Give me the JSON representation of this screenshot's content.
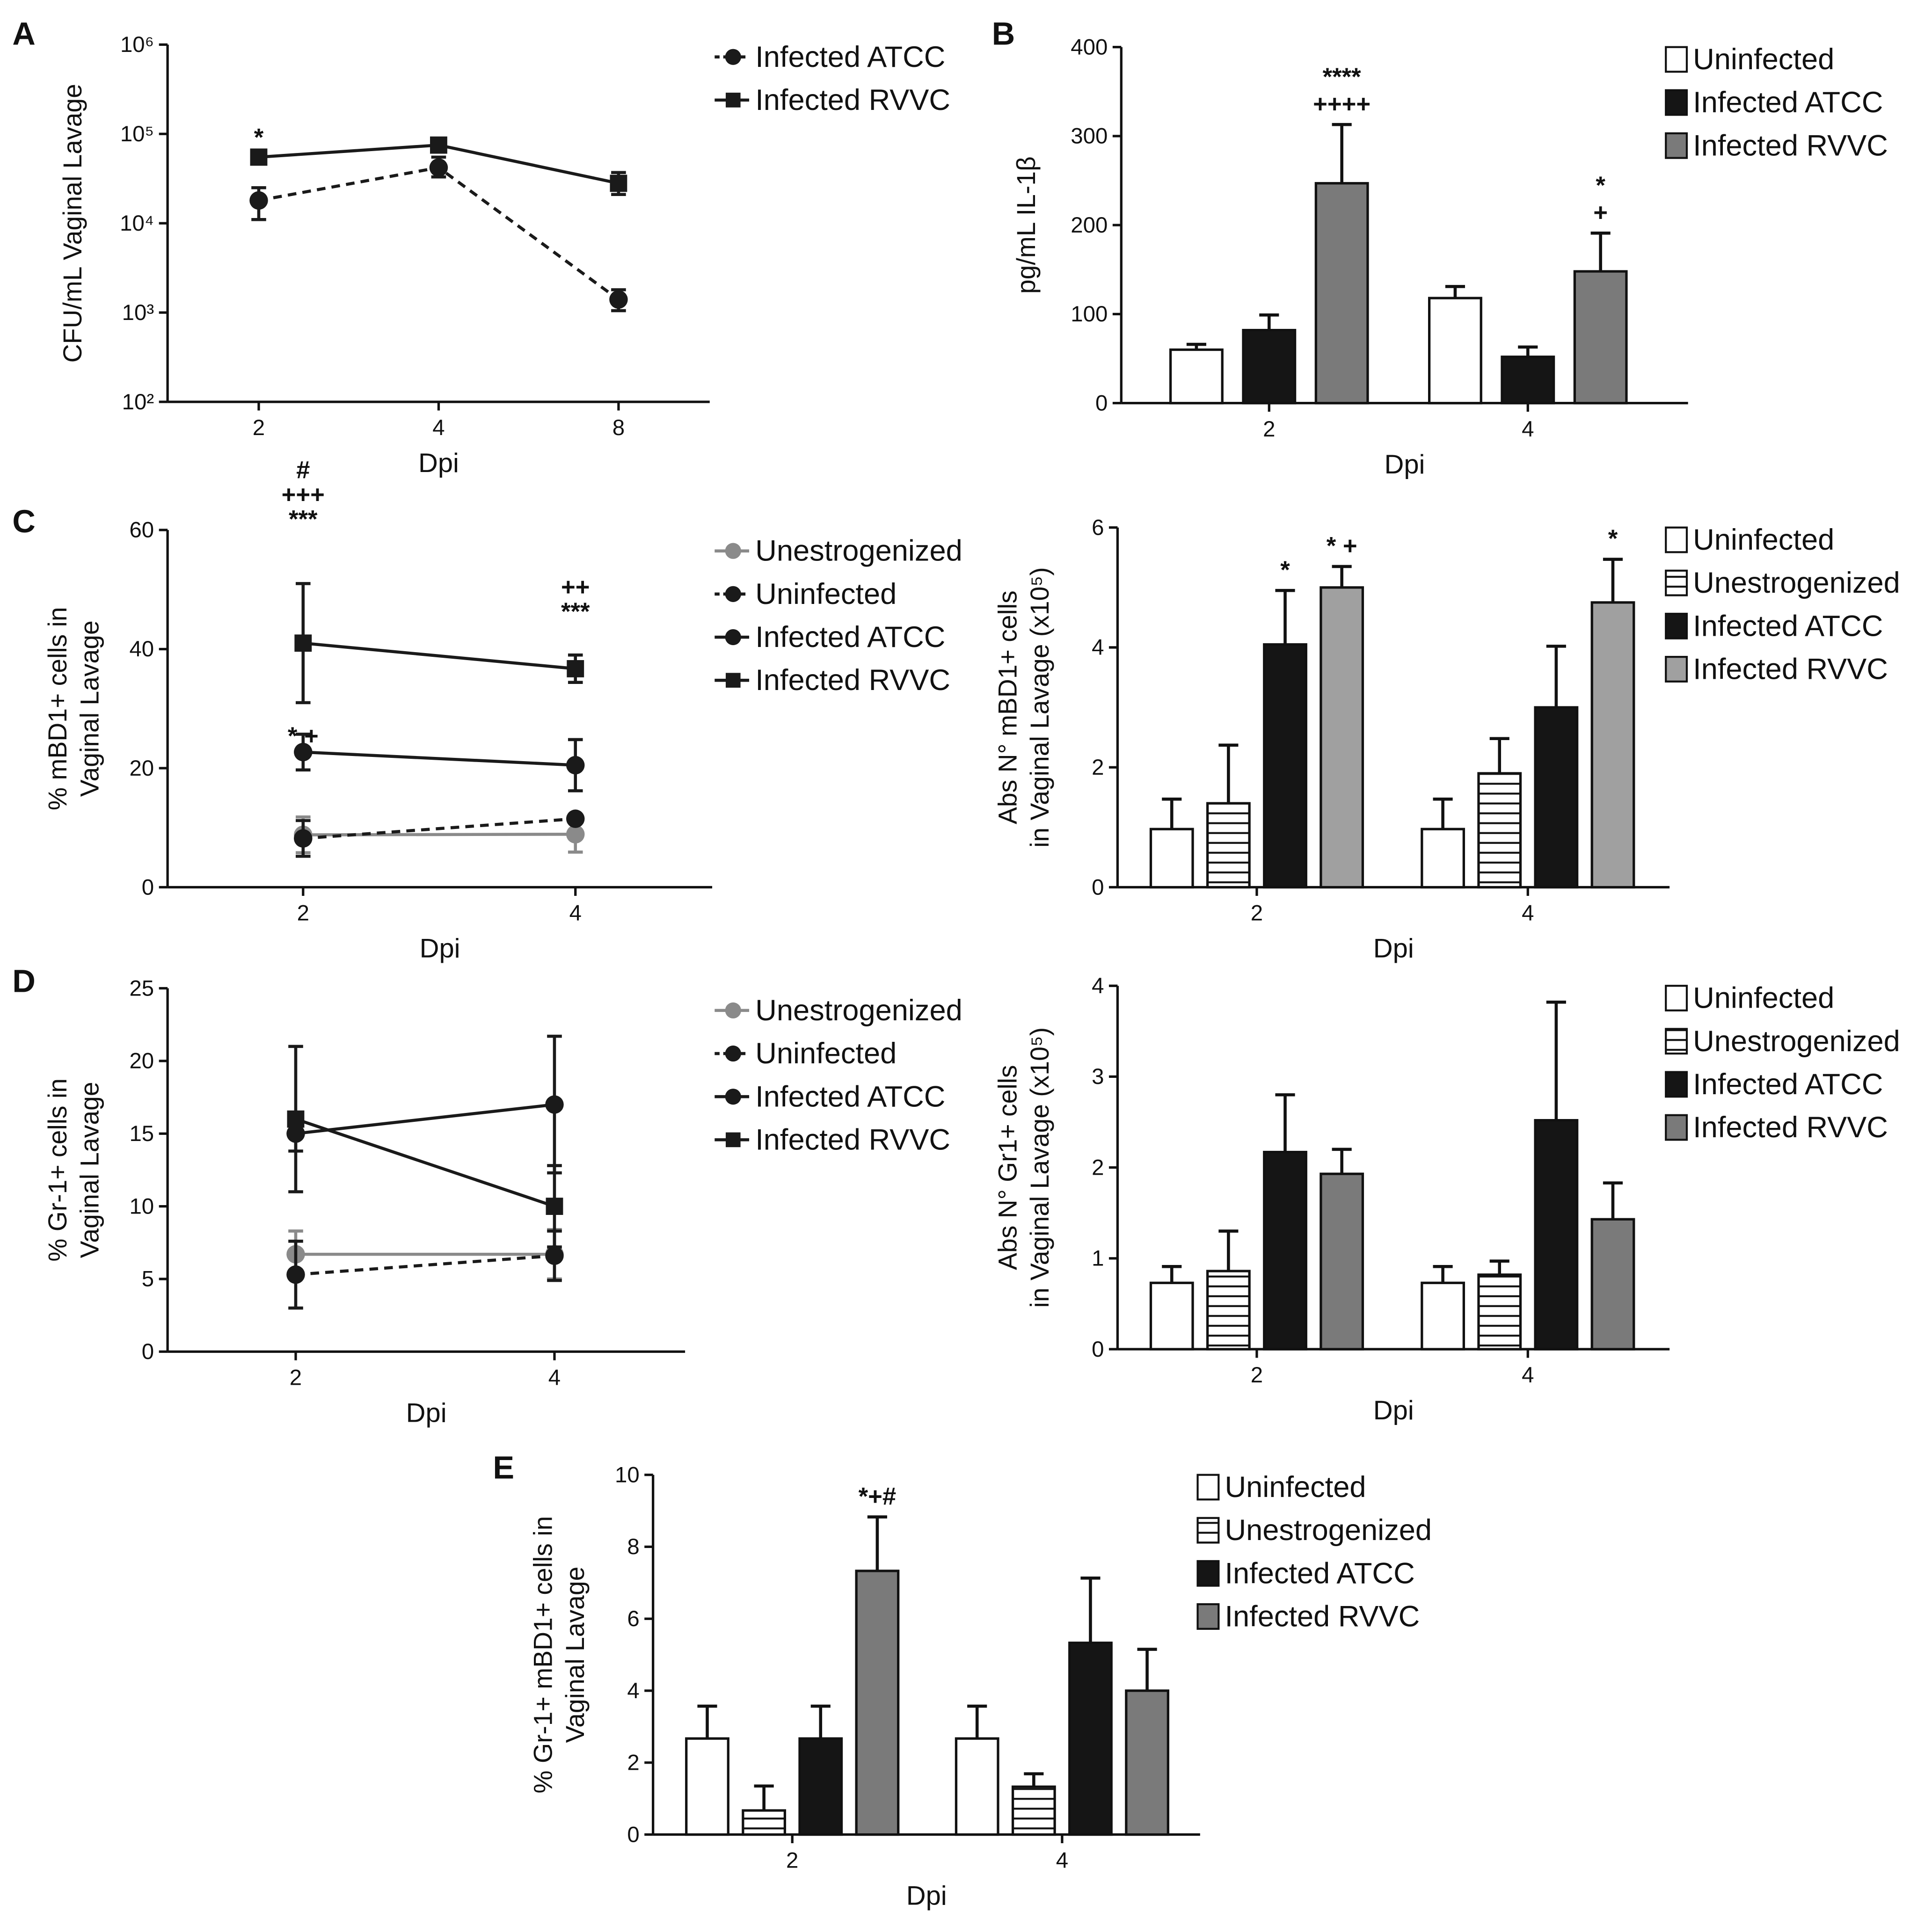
{
  "chart_data": [
    {
      "panel": "A",
      "type": "line",
      "y_scale": "log",
      "ylabel": "CFU/mL Vaginal Lavage",
      "xlabel": "Dpi",
      "x_ticks": [
        "2",
        "4",
        "8"
      ],
      "y_ticks": [
        "10²",
        "10³",
        "10⁴",
        "10⁵",
        "10⁶"
      ],
      "ylim": [
        100,
        1000000
      ],
      "series": [
        {
          "name": "Infected ATCC",
          "marker": "circle",
          "dashed": true,
          "color": "#1a1a1a",
          "values": [
            18000,
            42000,
            1400
          ],
          "errors_up": [
            25000,
            55000,
            1800
          ],
          "errors_down": [
            11000,
            33000,
            1050
          ]
        },
        {
          "name": "Infected RVVC",
          "marker": "square",
          "dashed": false,
          "color": "#1a1a1a",
          "values": [
            55000,
            75000,
            28000
          ],
          "errors_up": [
            62000,
            85000,
            37000
          ],
          "errors_down": [
            48000,
            66000,
            21000
          ]
        }
      ],
      "annotations": [
        {
          "x_index": 0,
          "lines": [
            "*"
          ]
        }
      ]
    },
    {
      "panel": "B",
      "type": "bar",
      "ylabel": "pg/mL IL-1β",
      "xlabel": "Dpi",
      "categories": [
        "2",
        "4"
      ],
      "ylim": [
        0,
        400
      ],
      "y_ticks": [
        "0",
        "100",
        "200",
        "300",
        "400"
      ],
      "series": [
        {
          "name": "Uninfected",
          "fill": "#ffffff",
          "pattern": "none",
          "values": [
            60,
            118
          ],
          "errors": [
            6,
            13
          ]
        },
        {
          "name": "Infected ATCC",
          "fill": "#151515",
          "pattern": "none",
          "values": [
            82,
            52
          ],
          "errors": [
            17,
            11
          ]
        },
        {
          "name": "Infected RVVC",
          "fill": "#7a7a7a",
          "pattern": "none",
          "values": [
            247,
            148
          ],
          "errors": [
            66,
            43
          ]
        }
      ],
      "annotations": [
        {
          "category_index": 0,
          "series_index": 2,
          "lines": [
            "****",
            "++++"
          ]
        },
        {
          "category_index": 1,
          "series_index": 2,
          "lines": [
            "*",
            "+"
          ]
        }
      ]
    },
    {
      "panel": "C",
      "type": "line",
      "ylabel_lines": [
        "% mBD1+ cells in",
        "Vaginal Lavage"
      ],
      "xlabel": "Dpi",
      "x_ticks": [
        "2",
        "4"
      ],
      "ylim": [
        0,
        60
      ],
      "y_ticks": [
        "0",
        "20",
        "40",
        "60"
      ],
      "series": [
        {
          "name": "Unestrogenized",
          "marker": "circle",
          "dashed": false,
          "color": "#8a8a8a",
          "values": [
            8.8,
            8.9
          ],
          "errors": [
            3,
            3
          ]
        },
        {
          "name": "Uninfected",
          "marker": "circle",
          "dashed": true,
          "color": "#1a1a1a",
          "values": [
            8.2,
            11.5
          ],
          "errors": [
            3,
            0.5
          ]
        },
        {
          "name": "Infected ATCC",
          "marker": "circle",
          "dashed": false,
          "color": "#1a1a1a",
          "values": [
            22.7,
            20.5
          ],
          "errors": [
            3,
            4.3
          ]
        },
        {
          "name": "Infected RVVC",
          "marker": "square",
          "dashed": false,
          "color": "#1a1a1a",
          "values": [
            41,
            36.7
          ],
          "errors": [
            10,
            2.3
          ]
        }
      ],
      "annotations": [
        {
          "x_index": 0,
          "lines": [
            "#",
            "+++",
            "***"
          ]
        },
        {
          "x_index": 0,
          "lines": [
            "* +"
          ]
        },
        {
          "x_index": 1,
          "lines": [
            "++",
            "***"
          ]
        }
      ]
    },
    {
      "panel": "C-right",
      "type": "bar",
      "ylabel_lines": [
        "Abs N° mBD1+ cells",
        "in Vaginal Lavage (x10⁵)"
      ],
      "xlabel": "Dpi",
      "categories": [
        "2",
        "4"
      ],
      "ylim": [
        0,
        6
      ],
      "y_ticks": [
        "0",
        "2",
        "4",
        "6"
      ],
      "series": [
        {
          "name": "Uninfected",
          "fill": "#ffffff",
          "pattern": "none",
          "values": [
            0.97,
            0.97
          ],
          "errors": [
            0.5,
            0.5
          ]
        },
        {
          "name": "Unestrogenized",
          "fill": "#ffffff",
          "pattern": "stripes",
          "values": [
            1.4,
            1.9
          ],
          "errors": [
            0.97,
            0.58
          ]
        },
        {
          "name": "Infected ATCC",
          "fill": "#151515",
          "pattern": "none",
          "values": [
            4.05,
            3.0
          ],
          "errors": [
            0.9,
            1.02
          ]
        },
        {
          "name": "Infected RVVC",
          "fill": "#a0a0a0",
          "pattern": "none",
          "values": [
            5.0,
            4.75
          ],
          "errors": [
            0.35,
            0.72
          ]
        }
      ],
      "annotations": [
        {
          "category_index": 0,
          "series_index": 2,
          "lines": [
            "*"
          ]
        },
        {
          "category_index": 0,
          "series_index": 3,
          "lines": [
            "* +"
          ]
        },
        {
          "category_index": 1,
          "series_index": 3,
          "lines": [
            "*"
          ]
        }
      ]
    },
    {
      "panel": "D",
      "type": "line",
      "ylabel_lines": [
        "% Gr-1+ cells in",
        "Vaginal Lavage"
      ],
      "xlabel": "Dpi",
      "x_ticks": [
        "2",
        "4"
      ],
      "ylim": [
        0,
        25
      ],
      "y_ticks": [
        "0",
        "5",
        "10",
        "15",
        "20",
        "25"
      ],
      "series": [
        {
          "name": "Unestrogenized",
          "marker": "circle",
          "dashed": false,
          "color": "#8a8a8a",
          "values": [
            6.7,
            6.7
          ],
          "errors": [
            1.6,
            1.7
          ]
        },
        {
          "name": "Uninfected",
          "marker": "circle",
          "dashed": true,
          "color": "#1a1a1a",
          "values": [
            5.3,
            6.6
          ],
          "errors": [
            2.3,
            1.7
          ]
        },
        {
          "name": "Infected ATCC",
          "marker": "circle",
          "dashed": false,
          "color": "#1a1a1a",
          "values": [
            15.0,
            17.0
          ],
          "errors": [
            1.2,
            4.7
          ]
        },
        {
          "name": "Infected RVVC",
          "marker": "square",
          "dashed": false,
          "color": "#1a1a1a",
          "values": [
            16.0,
            10.0
          ],
          "errors": [
            5.0,
            2.8
          ]
        }
      ],
      "annotations": []
    },
    {
      "panel": "D-right",
      "type": "bar",
      "ylabel_lines": [
        "Abs N° Gr1+ cells",
        "in Vaginal Lavage (x10⁵)"
      ],
      "xlabel": "Dpi",
      "categories": [
        "2",
        "4"
      ],
      "ylim": [
        0,
        4
      ],
      "y_ticks": [
        "0",
        "1",
        "2",
        "3",
        "4"
      ],
      "series": [
        {
          "name": "Uninfected",
          "fill": "#ffffff",
          "pattern": "none",
          "values": [
            0.73,
            0.73
          ],
          "errors": [
            0.18,
            0.18
          ]
        },
        {
          "name": "Unestrogenized",
          "fill": "#ffffff",
          "pattern": "stripes",
          "values": [
            0.86,
            0.82
          ],
          "errors": [
            0.44,
            0.15
          ]
        },
        {
          "name": "Infected ATCC",
          "fill": "#151515",
          "pattern": "none",
          "values": [
            2.17,
            2.52
          ],
          "errors": [
            0.63,
            1.3
          ]
        },
        {
          "name": "Infected RVVC",
          "fill": "#7a7a7a",
          "pattern": "none",
          "values": [
            1.93,
            1.43
          ],
          "errors": [
            0.27,
            0.4
          ]
        }
      ],
      "annotations": []
    },
    {
      "panel": "E",
      "type": "bar",
      "ylabel_lines": [
        "% Gr-1+ mBD1+ cells in",
        "Vaginal Lavage"
      ],
      "xlabel": "Dpi",
      "categories": [
        "2",
        "4"
      ],
      "ylim": [
        0,
        10
      ],
      "y_ticks": [
        "0",
        "2",
        "4",
        "6",
        "8",
        "10"
      ],
      "series": [
        {
          "name": "Uninfected",
          "fill": "#ffffff",
          "pattern": "none",
          "values": [
            2.67,
            2.67
          ],
          "errors": [
            0.9,
            0.9
          ]
        },
        {
          "name": "Unestrogenized",
          "fill": "#ffffff",
          "pattern": "stripes",
          "values": [
            0.67,
            1.33
          ],
          "errors": [
            0.68,
            0.36
          ]
        },
        {
          "name": "Infected ATCC",
          "fill": "#151515",
          "pattern": "none",
          "values": [
            2.67,
            5.33
          ],
          "errors": [
            0.9,
            1.8
          ]
        },
        {
          "name": "Infected RVVC",
          "fill": "#7a7a7a",
          "pattern": "none",
          "values": [
            7.33,
            4.0
          ],
          "errors": [
            1.5,
            1.15
          ]
        }
      ],
      "annotations": [
        {
          "category_index": 0,
          "series_index": 3,
          "lines": [
            "*+#"
          ]
        }
      ]
    }
  ]
}
